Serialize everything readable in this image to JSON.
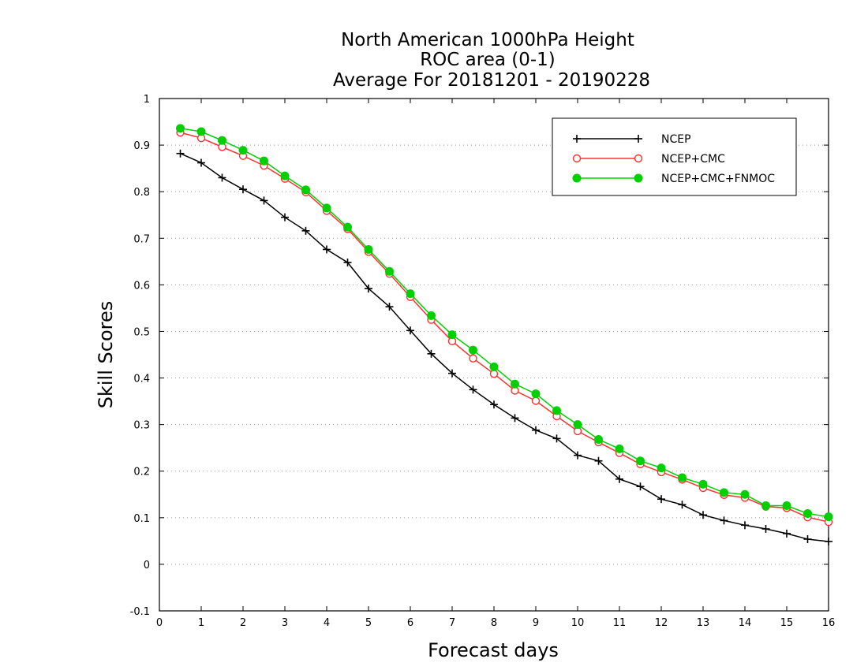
{
  "chart_data": {
    "type": "line",
    "title": [
      "North American 1000hPa Height",
      "ROC area (0-1)",
      "Average For 20181201 - 20190228"
    ],
    "xlabel": "Forecast days",
    "ylabel": "Skill Scores",
    "xlim": [
      0,
      16
    ],
    "ylim": [
      -0.1,
      1
    ],
    "xticks": [
      "0",
      "1",
      "2",
      "3",
      "4",
      "5",
      "6",
      "7",
      "8",
      "9",
      "10",
      "11",
      "12",
      "13",
      "14",
      "15",
      "16"
    ],
    "yticks": [
      "-0.1",
      "0",
      "0.1",
      "0.2",
      "0.3",
      "0.4",
      "0.5",
      "0.6",
      "0.7",
      "0.8",
      "0.9",
      "1"
    ],
    "grid": "horizontal dotted",
    "legend_position": "top-right",
    "x": [
      0.5,
      1,
      1.5,
      2,
      2.5,
      3,
      3.5,
      4,
      4.5,
      5,
      5.5,
      6,
      6.5,
      7,
      7.5,
      8,
      8.5,
      9,
      9.5,
      10,
      10.5,
      11,
      11.5,
      12,
      12.5,
      13,
      13.5,
      14,
      14.5,
      15,
      15.5,
      16
    ],
    "series": [
      {
        "name": "NCEP",
        "color": "#000000",
        "marker": "plus",
        "values": [
          0.882,
          0.862,
          0.83,
          0.805,
          0.781,
          0.745,
          0.716,
          0.676,
          0.648,
          0.592,
          0.553,
          0.502,
          0.452,
          0.41,
          0.375,
          0.343,
          0.314,
          0.288,
          0.27,
          0.234,
          0.222,
          0.183,
          0.167,
          0.14,
          0.128,
          0.106,
          0.094,
          0.084,
          0.076,
          0.066,
          0.054,
          0.049
        ]
      },
      {
        "name": "NCEP+CMC",
        "color": "#ff3030",
        "marker": "open-circle",
        "values": [
          0.927,
          0.915,
          0.896,
          0.877,
          0.856,
          0.828,
          0.799,
          0.759,
          0.72,
          0.671,
          0.624,
          0.574,
          0.525,
          0.479,
          0.442,
          0.409,
          0.373,
          0.351,
          0.318,
          0.286,
          0.262,
          0.239,
          0.215,
          0.198,
          0.182,
          0.164,
          0.149,
          0.143,
          0.124,
          0.121,
          0.101,
          0.091
        ]
      },
      {
        "name": "NCEP+CMC+FNMOC",
        "color": "#00d000",
        "marker": "filled-circle",
        "values": [
          0.936,
          0.929,
          0.91,
          0.889,
          0.866,
          0.834,
          0.804,
          0.765,
          0.724,
          0.676,
          0.629,
          0.581,
          0.534,
          0.493,
          0.46,
          0.424,
          0.387,
          0.366,
          0.33,
          0.3,
          0.268,
          0.248,
          0.222,
          0.207,
          0.186,
          0.172,
          0.154,
          0.15,
          0.126,
          0.126,
          0.109,
          0.102
        ]
      }
    ]
  }
}
